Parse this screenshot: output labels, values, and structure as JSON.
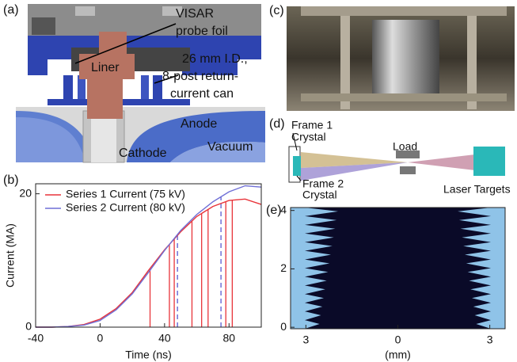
{
  "panels": {
    "a": {
      "label": "(a)",
      "annotations": [
        "VISAR",
        "probe foil",
        "Liner",
        "26 mm I.D.,",
        "8-post return-",
        "current can",
        "Anode",
        "Vacuum",
        "Cathode"
      ]
    },
    "b": {
      "label": "(b)"
    },
    "c": {
      "label": "(c)"
    },
    "d": {
      "label": "(d)",
      "annotations": [
        "Frame 1",
        "Crystal",
        "Frame 2",
        "Crystal",
        "Load",
        "Laser Targets"
      ]
    },
    "e": {
      "label": "(e)"
    }
  },
  "chart_data": [
    {
      "type": "line",
      "xlabel": "Time (ns)",
      "ylabel": "Current (MA)",
      "x": [
        -40,
        -30,
        -20,
        -10,
        0,
        10,
        20,
        30,
        40,
        50,
        60,
        70,
        80,
        90,
        100
      ],
      "series": [
        {
          "name": "Series 1 Current (75 kV)",
          "color": "#e8343a",
          "values": [
            0,
            0,
            0.1,
            0.4,
            1.2,
            2.8,
            5.2,
            8.5,
            11.6,
            14.3,
            16.6,
            18.1,
            19.0,
            19.2,
            18.4
          ]
        },
        {
          "name": "Series 2 Current (80 kV)",
          "color": "#6f6fd6",
          "values": [
            0,
            0,
            0.1,
            0.3,
            1.0,
            2.6,
            5.0,
            8.2,
            11.5,
            14.5,
            16.9,
            18.8,
            20.3,
            21.2,
            21.0
          ]
        }
      ],
      "markers": [
        {
          "color": "#e8343a",
          "dashed": false,
          "x": [
            31,
            43,
            46,
            57,
            63,
            67,
            78,
            82
          ]
        },
        {
          "color": "#5a5ad0",
          "dashed": true,
          "x": [
            48,
            75
          ]
        }
      ],
      "xlim": [
        -40,
        100
      ],
      "xticks": [
        -40,
        0,
        40,
        80
      ],
      "ylim": [
        0,
        21.5
      ],
      "yticks": [
        0,
        20
      ],
      "legend": "upper left",
      "grid": false
    },
    {
      "type": "image",
      "xlabel": "(mm)",
      "xlim": [
        -3.5,
        3.5
      ],
      "xticks": [
        {
          "value": -3,
          "label": "3"
        },
        0,
        {
          "value": 3,
          "label": "3"
        }
      ],
      "ylim": [
        -0.05,
        4.1
      ],
      "yticks": [
        0,
        2,
        4
      ]
    }
  ]
}
